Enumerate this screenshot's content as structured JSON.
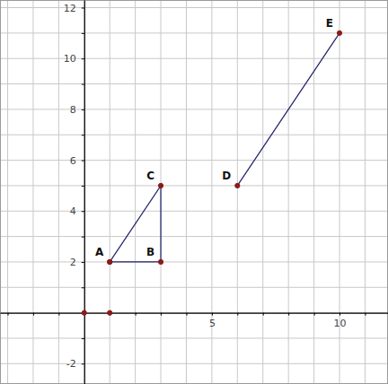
{
  "chart_data": {
    "type": "line",
    "xlim": [
      -3.3,
      11.9
    ],
    "ylim": [
      -2.8,
      12.3
    ],
    "grid": true,
    "xticks": [
      {
        "value": -3,
        "label": null
      },
      {
        "value": -2,
        "label": null
      },
      {
        "value": -1,
        "label": null
      },
      {
        "value": 0,
        "label": null
      },
      {
        "value": 1,
        "label": null
      },
      {
        "value": 2,
        "label": null
      },
      {
        "value": 3,
        "label": null
      },
      {
        "value": 4,
        "label": null
      },
      5,
      {
        "value": 6,
        "label": null
      },
      {
        "value": 7,
        "label": null
      },
      {
        "value": 8,
        "label": null
      },
      {
        "value": 9,
        "label": null
      },
      10,
      {
        "value": 11,
        "label": null
      }
    ],
    "yticks": [
      -2,
      {
        "value": -1,
        "label": null
      },
      {
        "value": 0,
        "label": null
      },
      {
        "value": 1,
        "label": null
      },
      2,
      {
        "value": 3,
        "label": null
      },
      4,
      {
        "value": 5,
        "label": null
      },
      6,
      {
        "value": 7,
        "label": null
      },
      8,
      {
        "value": 9,
        "label": null
      },
      10,
      {
        "value": 11,
        "label": null
      },
      12
    ],
    "series": [
      {
        "type": "line",
        "marker": "circle",
        "color": "#1f1f6b",
        "x": [
          1,
          3,
          3,
          1
        ],
        "values": [
          2,
          2,
          5,
          2
        ],
        "labels": [
          "A",
          "B",
          "C",
          null
        ]
      },
      {
        "type": "line",
        "marker": "circle",
        "color": "#1f1f6b",
        "x": [
          6,
          10
        ],
        "values": [
          5,
          11
        ],
        "labels": [
          "D",
          "E"
        ]
      },
      {
        "type": "scatter",
        "marker": "circle",
        "color": "#8b1a1a",
        "x": [
          0,
          1
        ],
        "values": [
          0,
          0
        ]
      }
    ]
  }
}
